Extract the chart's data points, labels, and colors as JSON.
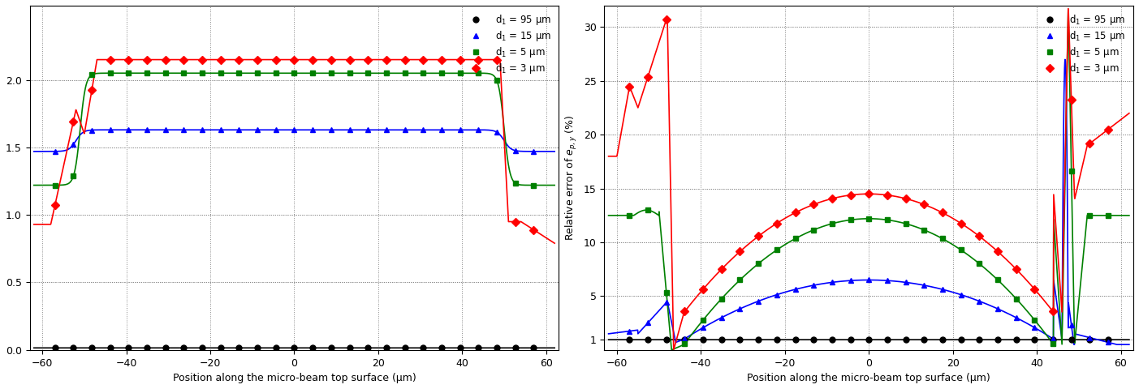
{
  "xlabel": "Position along the micro-beam top surface (μm)",
  "right_ylabel": "Relative error of $e_{p,y}$ (%)",
  "xlim": [
    -63,
    63
  ],
  "left_ylim": [
    0,
    2.55
  ],
  "right_ylim": [
    0,
    32
  ],
  "left_yticks": [
    0,
    0.5,
    1.0,
    1.5,
    2.0
  ],
  "right_yticks": [
    1,
    5,
    10,
    15,
    20,
    25,
    30
  ],
  "xticks": [
    -60,
    -40,
    -20,
    0,
    20,
    40,
    60
  ],
  "legend_labels": [
    "d$_1$ = 95 μm",
    "d$_1$ = 15 μm",
    "d$_1$ = 5 μm",
    "d$_1$ = 3 μm"
  ],
  "colors": [
    "black",
    "blue",
    "green",
    "red"
  ],
  "markers": [
    "o",
    "^",
    "s",
    "D"
  ],
  "marker_size": 5,
  "linewidth": 1.2,
  "grid_color": "#888888",
  "grid_style": "dotted"
}
